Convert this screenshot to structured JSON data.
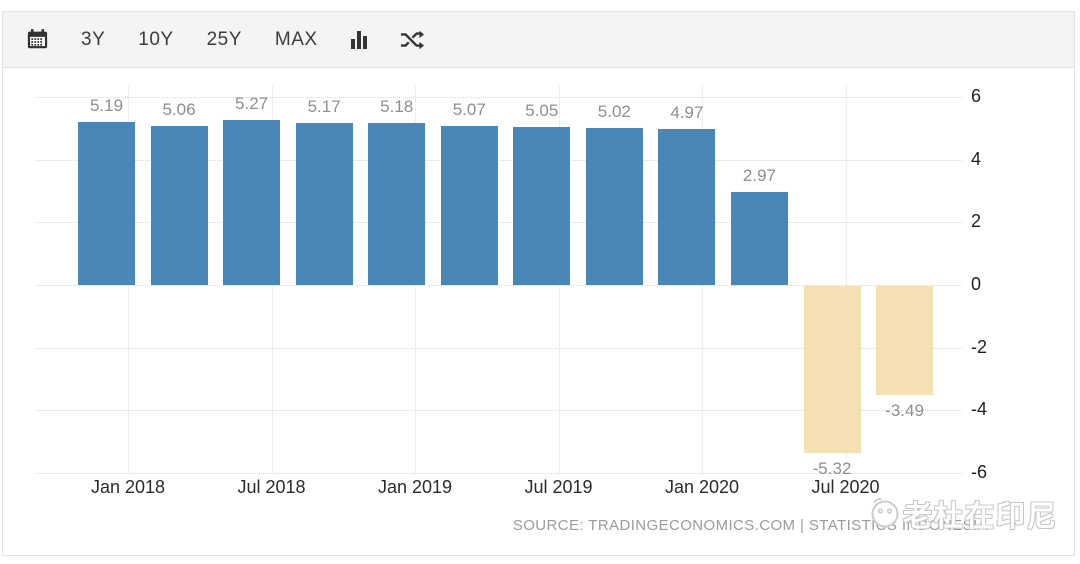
{
  "toolbar": {
    "buttons": [
      {
        "label": "3Y"
      },
      {
        "label": "10Y"
      },
      {
        "label": "25Y"
      },
      {
        "label": "MAX"
      }
    ],
    "icons": [
      "calendar-icon",
      "bar-chart-icon",
      "compare-shuffle-icon"
    ]
  },
  "chart_data": {
    "type": "bar",
    "values": [
      5.19,
      5.06,
      5.27,
      5.17,
      5.18,
      5.07,
      5.05,
      5.02,
      4.97,
      2.97,
      -5.32,
      -3.49
    ],
    "x_tick_labels": [
      "Jan 2018",
      "Jul 2018",
      "Jan 2019",
      "Jul 2019",
      "Jan 2020",
      "Jul 2020"
    ],
    "y_ticks": [
      6,
      4,
      2,
      0,
      -2,
      -4,
      -6
    ],
    "ylim": [
      -6,
      6
    ],
    "grid": "horizontal dotted + faint vertical at x ticks",
    "legend": "none",
    "colors": {
      "positive_bar": "#4a87b9",
      "negative_bar": "#f5dfb5"
    },
    "source_text": "SOURCE: TRADINGECONOMICS.COM | STATISTICS INDONESIA"
  },
  "watermark": {
    "text": "老杜在印尼"
  }
}
